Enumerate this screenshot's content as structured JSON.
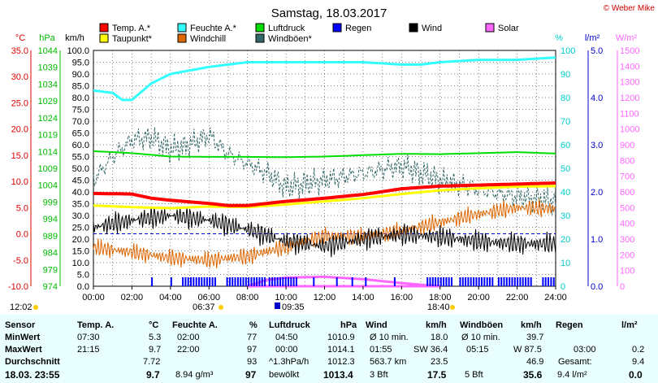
{
  "title": "Samstag, 18.03.2017",
  "copyright": "© Weber Mike",
  "legend": [
    {
      "label": "Temp. A.*",
      "color": "#ff0000"
    },
    {
      "label": "Feuchte A.*",
      "color": "#33ffff"
    },
    {
      "label": "Luftdruck",
      "color": "#00dd00"
    },
    {
      "label": "Regen",
      "color": "#0000ff"
    },
    {
      "label": "Wind",
      "color": "#000000"
    },
    {
      "label": "Solar",
      "color": "#ff66ff"
    },
    {
      "label": "Taupunkt*",
      "color": "#ffff00"
    },
    {
      "label": "Windchill",
      "color": "#dd6600"
    },
    {
      "label": "Windböen*",
      "color": "#336666"
    }
  ],
  "axes": {
    "temp": {
      "unit": "°C",
      "ticks": [
        "35.0",
        "30.0",
        "25.0",
        "20.0",
        "15.0",
        "10.0",
        "5.0",
        "0.0",
        "-5.0",
        "-10.0"
      ],
      "color": "#dd0000"
    },
    "press": {
      "unit": "hPa",
      "ticks": [
        "1044",
        "1039",
        "1034",
        "1029",
        "1024",
        "1019",
        "1014",
        "1009",
        "1004",
        "999",
        "994",
        "989",
        "984",
        "979",
        "974"
      ],
      "color": "#00bb00"
    },
    "wind": {
      "unit": "km/h",
      "ticks": [
        "100.0",
        "95.0",
        "90.0",
        "85.0",
        "80.0",
        "75.0",
        "70.0",
        "65.0",
        "60.0",
        "55.0",
        "50.0",
        "45.0",
        "40.0",
        "35.0",
        "30.0",
        "25.0",
        "20.0",
        "15.0",
        "10.0",
        "5.0",
        "0.0"
      ],
      "color": "#000000"
    },
    "hum": {
      "unit": "%",
      "ticks": [
        "100",
        "90",
        "80",
        "70",
        "60",
        "50",
        "40",
        "30",
        "20",
        "10",
        "0"
      ],
      "color": "#00cccc"
    },
    "rain": {
      "unit": "l/m²",
      "ticks": [
        "5.0",
        "4.0",
        "3.0",
        "2.0",
        "1.0",
        "0.0"
      ],
      "color": "#0000cc"
    },
    "solar": {
      "unit": "W/m²",
      "ticks": [
        "1500",
        "1400",
        "1300",
        "1200",
        "1100",
        "1000",
        "900",
        "800",
        "700",
        "600",
        "500",
        "400",
        "300",
        "200",
        "100",
        "0"
      ],
      "color": "#ff66ff"
    },
    "x_ticks": [
      "00:00",
      "02:00",
      "04:00",
      "06:00",
      "08:00",
      "10:00",
      "12:00",
      "14:00",
      "16:00",
      "18:00",
      "20:00",
      "22:00",
      "24:00"
    ]
  },
  "sun": {
    "sunrise": "06:37",
    "sunset": "18:40",
    "moon": "09:35",
    "sunrise_prev": "12:02"
  },
  "colors": {
    "grid": "#000000",
    "zero": "#0000cc",
    "stats_bg": "#e9ffff"
  },
  "chart_data": {
    "type": "line",
    "x_unit": "hours",
    "series": [
      {
        "name": "Temp. A.*",
        "axis": "°C",
        "x": [
          0,
          2,
          3,
          4,
          6,
          7,
          8,
          10,
          12,
          14,
          16,
          18,
          20,
          22,
          24
        ],
        "y": [
          7.7,
          7.6,
          6.8,
          6.4,
          5.8,
          5.4,
          5.4,
          6.2,
          6.8,
          7.5,
          8.6,
          9.1,
          9.3,
          9.5,
          9.7
        ]
      },
      {
        "name": "Taupunkt*",
        "axis": "°C",
        "x": [
          0,
          2,
          4,
          6,
          8,
          10,
          12,
          14,
          16,
          18,
          20,
          22,
          24
        ],
        "y": [
          5.4,
          5.1,
          4.9,
          5.2,
          5.1,
          5.6,
          6.2,
          6.8,
          7.6,
          8.3,
          8.7,
          9.0,
          9.1
        ]
      },
      {
        "name": "Feuchte A.*",
        "axis": "%",
        "x": [
          0,
          1,
          1.5,
          2,
          3,
          4,
          6,
          8,
          10,
          12,
          14,
          16,
          17,
          18,
          20,
          22,
          24
        ],
        "y": [
          83,
          82,
          79,
          79,
          86,
          90,
          93,
          95,
          95,
          95,
          95,
          94,
          94,
          95,
          96,
          96,
          97
        ]
      },
      {
        "name": "Luftdruck",
        "axis": "hPa",
        "x": [
          0,
          2,
          4,
          6,
          8,
          10,
          12,
          14,
          16,
          18,
          20,
          22,
          24
        ],
        "y": [
          1014.1,
          1013.5,
          1012.5,
          1012.4,
          1012.4,
          1012.3,
          1012.5,
          1012.9,
          1013.3,
          1013.2,
          1013.5,
          1013.8,
          1013.4
        ]
      },
      {
        "name": "Wind",
        "axis": "km/h",
        "x": [
          0,
          2,
          4,
          6,
          8,
          10,
          12,
          14,
          16,
          18,
          20,
          22,
          24
        ],
        "y": [
          25,
          28,
          30,
          28,
          24,
          19,
          17,
          20,
          22,
          21,
          19,
          18,
          18
        ]
      },
      {
        "name": "Windböen*",
        "axis": "km/h",
        "x": [
          0,
          1,
          2,
          3,
          4,
          5,
          6,
          7,
          8,
          9,
          10,
          12,
          14,
          16,
          18,
          20,
          22,
          24
        ],
        "y": [
          45,
          55,
          62,
          63,
          58,
          60,
          64,
          56,
          52,
          48,
          42,
          45,
          48,
          51,
          45,
          41,
          38,
          36
        ]
      },
      {
        "name": "Windchill",
        "axis": "°C",
        "x": [
          0,
          2,
          4,
          6,
          8,
          10,
          12,
          14,
          16,
          18,
          20,
          22,
          24
        ],
        "y": [
          -2.6,
          -3.5,
          -4.6,
          -5.0,
          -4.3,
          -2.5,
          -0.4,
          -0.5,
          0.5,
          2.2,
          3.8,
          5.0,
          4.8
        ]
      },
      {
        "name": "Solar",
        "axis": "W/m²",
        "x": [
          8,
          9,
          10,
          12,
          14,
          16,
          18
        ],
        "y": [
          0,
          40,
          55,
          60,
          45,
          20,
          0
        ]
      },
      {
        "name": "Regen",
        "axis": "l/m²",
        "x": [
          0,
          24
        ],
        "y": [
          0.2,
          0.2
        ]
      }
    ],
    "xlim": [
      0,
      24
    ]
  },
  "stats": {
    "headers": {
      "sensor": "Sensor",
      "temp": "Temp. A.",
      "temp_u": "°C",
      "hum": "Feuchte A.",
      "hum_u": "%",
      "press": "Luftdruck",
      "press_u": "hPa",
      "wind": "Wind",
      "wind_u": "km/h",
      "gust": "Windböen",
      "gust_u": "km/h",
      "rain": "Regen",
      "rain_u": "l/m²"
    },
    "min": {
      "label": "MinWert",
      "temp_t": "07:30",
      "temp_v": "5.3",
      "hum_t": "02:00",
      "hum_v": "77",
      "press_t": "04:50",
      "press_v": "1010.9",
      "wind_t": "Ø 10 min.",
      "wind_v": "18.0",
      "gust_t": "Ø 10 min.",
      "gust_v": "39.7"
    },
    "max": {
      "label": "MaxWert",
      "temp_t": "21:15",
      "temp_v": "9.7",
      "hum_t": "22:00",
      "hum_v": "97",
      "press_t": "00:00",
      "press_v": "1014.1",
      "wind_t": "01:55",
      "wind_d": "SW 36.4",
      "gust_t": "05:15",
      "gust_d": "W 87.5",
      "rain_t": "03:00",
      "rain_v": "0.2"
    },
    "avg": {
      "label": "Durchschnitt",
      "temp_v": "7.72",
      "hum_v": "93",
      "press_t": "^1.3hPa/h",
      "press_v": "1012.3",
      "wind_t": "563.7 km",
      "wind_v": "23.5",
      "gust_v": "46.9",
      "rain_t": "Gesamt:",
      "rain_v": "9.4"
    },
    "now": {
      "label": "18.03. 23:55",
      "temp_v": "9.7",
      "hum_t": "8.94 g/m³",
      "hum_v": "97",
      "press_t": "bewölkt",
      "press_v": "1013.4",
      "wind_t": "3 Bft",
      "wind_v": "17.5",
      "gust_t": "5 Bft",
      "gust_v": "35.6",
      "rain_t": "9.4 l/m²",
      "rain_v": "0.0"
    }
  }
}
